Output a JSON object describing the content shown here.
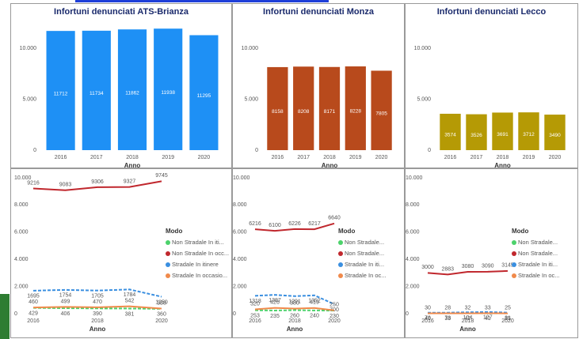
{
  "chart_data": [
    {
      "type": "bar",
      "title": "Infortuni denunciati ATS-Brianza",
      "xlabel": "Anno",
      "color": "#1e90f5",
      "categories": [
        "2016",
        "2017",
        "2018",
        "2019",
        "2020"
      ],
      "values": [
        11712,
        11734,
        11862,
        11938,
        11295
      ],
      "ylim": [
        0,
        12500
      ],
      "yticks": [
        0,
        {
          "value": 5000,
          "label": "5.000"
        },
        {
          "value": 10000,
          "label": "10.000"
        }
      ]
    },
    {
      "type": "bar",
      "title": "Infortuni denunciati Monza",
      "xlabel": "Anno",
      "color": "#b84a1c",
      "categories": [
        "2016",
        "2017",
        "2018",
        "2019",
        "2020"
      ],
      "values": [
        8158,
        8208,
        8171,
        8228,
        7805
      ],
      "ylim": [
        0,
        12500
      ],
      "yticks": [
        0,
        {
          "value": 5000,
          "label": "5.000"
        },
        {
          "value": 10000,
          "label": "10.000"
        }
      ]
    },
    {
      "type": "bar",
      "title": "Infortuni denunciati Lecco",
      "xlabel": "Anno",
      "color": "#b59a05",
      "categories": [
        "2016",
        "2017",
        "2018",
        "2019",
        "2020"
      ],
      "values": [
        3574,
        3526,
        3691,
        3712,
        3490
      ],
      "ylim": [
        0,
        12500
      ],
      "yticks": [
        0,
        {
          "value": 5000,
          "label": "5.000"
        },
        {
          "value": 10000,
          "label": "10.000"
        }
      ]
    },
    {
      "type": "line",
      "xlabel": "Anno",
      "legend_title": "Modo",
      "categories": [
        "2016",
        null,
        "2018",
        null,
        "2020"
      ],
      "series": [
        {
          "name": "Non Stradale In iti...",
          "color": "#4cd26b",
          "style": "dashed",
          "values": [
            429,
            406,
            390,
            381,
            360
          ]
        },
        {
          "name": "Non Stradale In occ...",
          "color": "#c0272d",
          "style": "solid",
          "values": [
            9216,
            9083,
            9306,
            9327,
            9745
          ]
        },
        {
          "name": "Stradale In itinere",
          "color": "#3a8fe0",
          "style": "dashed",
          "values": [
            1695,
            1754,
            1705,
            1784,
            1250
          ]
        },
        {
          "name": "Stradale In occasio...",
          "color": "#f08a4b",
          "style": "solid",
          "values": [
            460,
            499,
            470,
            542,
            380
          ]
        }
      ],
      "ylim": [
        0,
        10000
      ],
      "yticks": [
        0,
        {
          "value": 2000,
          "label": "2.000"
        },
        {
          "value": 4000,
          "label": "4.000"
        },
        {
          "value": 6000,
          "label": "6.000"
        },
        {
          "value": 8000,
          "label": "8.000"
        },
        {
          "value": 10000,
          "label": "10.000"
        }
      ]
    },
    {
      "type": "line",
      "xlabel": "Anno",
      "legend_title": "Modo",
      "categories": [
        "2016",
        null,
        "2018",
        null,
        "2020"
      ],
      "series": [
        {
          "name": "Non Stradale...",
          "color": "#4cd26b",
          "style": "dashed",
          "values": [
            253,
            235,
            260,
            240,
            230
          ]
        },
        {
          "name": "Non Stradale...",
          "color": "#c0272d",
          "style": "solid",
          "values": [
            6216,
            6100,
            6226,
            6217,
            6640
          ]
        },
        {
          "name": "Stradale In iti...",
          "color": "#3a8fe0",
          "style": "dashed",
          "values": [
            1318,
            1387,
            1291,
            1352,
            700
          ]
        },
        {
          "name": "Stradale In oc...",
          "color": "#f08a4b",
          "style": "solid",
          "values": [
            320,
            426,
            380,
            419,
            250
          ]
        }
      ],
      "ylim": [
        0,
        10000
      ],
      "yticks": [
        0,
        {
          "value": 2000,
          "label": "2.000"
        },
        {
          "value": 4000,
          "label": "4.000"
        },
        {
          "value": 6000,
          "label": "6.000"
        },
        {
          "value": 8000,
          "label": "8.000"
        },
        {
          "value": 10000,
          "label": "10.000"
        }
      ]
    },
    {
      "type": "line",
      "xlabel": "Anno",
      "legend_title": "Modo",
      "categories": [
        "2016",
        null,
        "2018",
        null,
        "2020"
      ],
      "series": [
        {
          "name": "Non Stradale...",
          "color": "#4cd26b",
          "style": "dashed",
          "values": [
            40,
            38,
            42,
            41,
            35
          ]
        },
        {
          "name": "Non Stradale...",
          "color": "#c0272d",
          "style": "solid",
          "values": [
            3000,
            2883,
            3080,
            3090,
            3145
          ]
        },
        {
          "name": "Stradale In iti...",
          "color": "#3a8fe0",
          "style": "dashed",
          "values": [
            76,
            73,
            104,
            127,
            81
          ]
        },
        {
          "name": "Stradale In oc...",
          "color": "#f08a4b",
          "style": "solid",
          "values": [
            30,
            28,
            32,
            33,
            25
          ]
        }
      ],
      "ylim": [
        0,
        10000
      ],
      "yticks": [
        0,
        {
          "value": 2000,
          "label": "2.000"
        },
        {
          "value": 4000,
          "label": "4.000"
        },
        {
          "value": 6000,
          "label": "6.000"
        },
        {
          "value": 8000,
          "label": "8.000"
        },
        {
          "value": 10000,
          "label": "10.000"
        }
      ]
    }
  ]
}
